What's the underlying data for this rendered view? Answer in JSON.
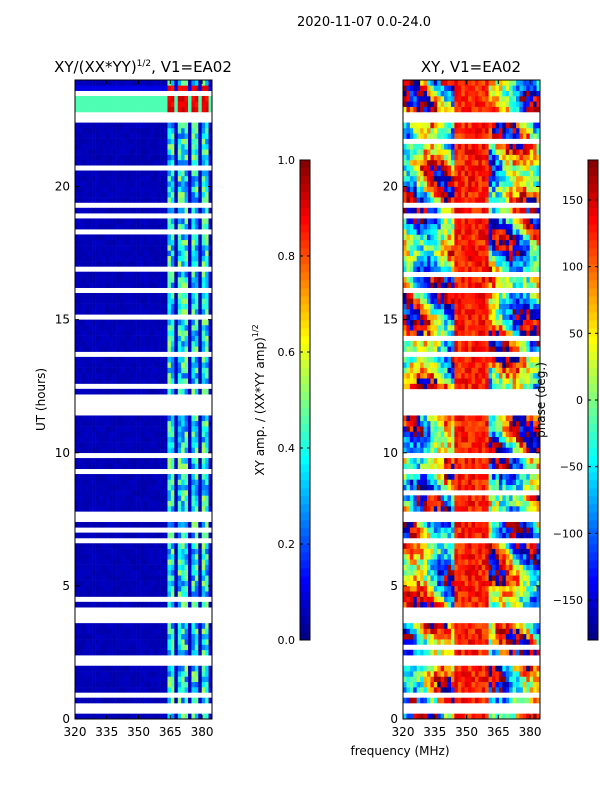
{
  "chart_data": {
    "type": "heatmap",
    "suptitle": "2020-11-07 0.0-24.0",
    "shared_xlabel": "frequency (MHz)",
    "panels": [
      {
        "title_main": "XY/(XX*YY)",
        "title_sup": "1/2",
        "title_rest": ", V1=EA02",
        "ylabel": "UT (hours)",
        "xlim": [
          320,
          384.7
        ],
        "ylim": [
          0,
          24
        ],
        "xticks": [
          "320",
          "335",
          "350",
          "365",
          "380"
        ],
        "xtick_values": [
          320,
          335,
          350,
          365,
          380
        ],
        "yticks": [
          "0",
          "5",
          "10",
          "15",
          "20"
        ],
        "ytick_values": [
          0,
          5,
          10,
          15,
          20
        ],
        "quantity": "amplitude",
        "colorbar": {
          "label_main": "XY amp. / (XX*YY amp)",
          "label_sup": "1/2",
          "range": [
            0.0,
            1.0
          ],
          "ticks": [
            "0.0",
            "0.2",
            "0.4",
            "0.6",
            "0.8",
            "1.0"
          ],
          "tick_values": [
            0,
            0.2,
            0.4,
            0.6,
            0.8,
            1.0
          ],
          "colormap": "jet"
        }
      },
      {
        "title_main": "XY, V1=EA02",
        "title_sup": "",
        "title_rest": "",
        "ylabel": "",
        "xlim": [
          320,
          384.7
        ],
        "ylim": [
          0,
          24
        ],
        "xticks": [
          "320",
          "335",
          "350",
          "365",
          "380"
        ],
        "xtick_values": [
          320,
          335,
          350,
          365,
          380
        ],
        "yticks": [
          "0",
          "5",
          "10",
          "15",
          "20"
        ],
        "ytick_values": [
          0,
          5,
          10,
          15,
          20
        ],
        "quantity": "phase",
        "colorbar": {
          "label_main": "phase (deg.)",
          "label_sup": "",
          "range": [
            -180,
            180
          ],
          "ticks": [
            "−150",
            "−100",
            "−50",
            "0",
            "50",
            "100",
            "150"
          ],
          "tick_values": [
            -150,
            -100,
            -50,
            0,
            50,
            100,
            150
          ],
          "colormap": "jet"
        }
      }
    ],
    "flagged_hours_approx": [
      0.4,
      0.9,
      2.1,
      2.3,
      3.7,
      4.0,
      6.7,
      7.6,
      9.3,
      9.9,
      11.6,
      12.0,
      13.7,
      16.1,
      18.9,
      19.3,
      22.6
    ]
  }
}
